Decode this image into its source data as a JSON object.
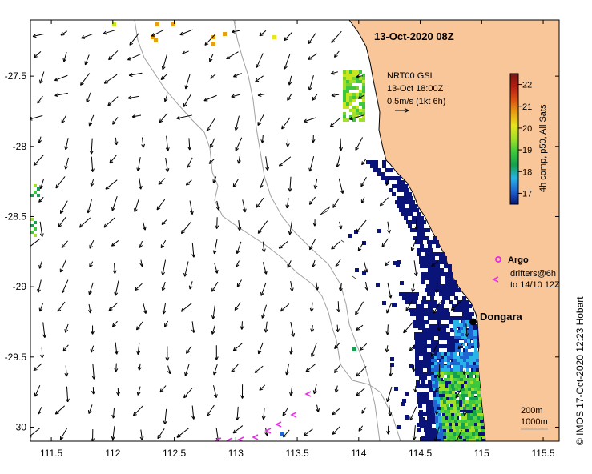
{
  "title": "13-Oct-2020 08Z",
  "legend_vector": {
    "line1": "NRT00 GSL",
    "line2": "13-Oct 18:00Z",
    "line3": "0.5m/s (1kt 6h)"
  },
  "colorbar": {
    "label": "4h comp, p50, All Sats",
    "min": 16.5,
    "max": 22.5,
    "ticks": [
      "17",
      "18",
      "19",
      "20",
      "21",
      "22"
    ],
    "colors": [
      "#0a1478",
      "#1e64d2",
      "#28b4e6",
      "#14a050",
      "#3cc83c",
      "#a0e028",
      "#e6e61e",
      "#e6a014",
      "#dc5014",
      "#b41e14",
      "#781414"
    ]
  },
  "argo": {
    "label": "Argo",
    "color": "#e632e6"
  },
  "drifters": {
    "line1": "drifters@6h",
    "line2": "to 14/10 12Z",
    "color": "#e632e6"
  },
  "place": {
    "name": "Dongara",
    "lon": 114.93,
    "lat": -29.25
  },
  "isobaths": {
    "line1": "200m",
    "line2": "1000m"
  },
  "credit": "© IMOS 17-Oct-2020 12:23 Hobart",
  "axes": {
    "x_ticks": [
      "111.5",
      "112",
      "112.5",
      "113",
      "113.5",
      "114",
      "114.5",
      "115",
      "115.5"
    ],
    "x_values": [
      111.5,
      112,
      112.5,
      113,
      113.5,
      114,
      114.5,
      115,
      115.5
    ],
    "y_ticks": [
      "-27.5",
      "-28",
      "-28.5",
      "-29",
      "-29.5",
      "-30"
    ],
    "y_values": [
      -27.5,
      -28,
      -28.5,
      -29,
      -29.5,
      -30
    ],
    "lon_range": [
      111.33,
      115.63
    ],
    "lat_range": [
      -27.1,
      -30.1
    ]
  },
  "colors": {
    "land": "#f9c69a",
    "coast": "#000000",
    "isobath": "#a0a0a0",
    "arrow": "#000000"
  }
}
